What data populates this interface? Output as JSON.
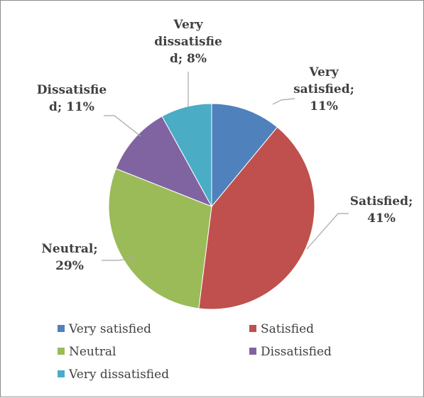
{
  "chart_data": {
    "type": "pie",
    "title": "",
    "series": [
      {
        "values": [
          11,
          41,
          29,
          11,
          8
        ],
        "categories": [
          "Very satisfied",
          "Satisfied",
          "Neutral",
          "Dissatisfied",
          "Very dissatisfied"
        ]
      }
    ],
    "slices": [
      {
        "label": "Very satisfied",
        "value": 11,
        "data_label": [
          "Very",
          "satisfied;",
          "11%"
        ],
        "color": "#4f81bd"
      },
      {
        "label": "Satisfied",
        "value": 41,
        "data_label": [
          "Satisfied;",
          "41%"
        ],
        "color": "#c0504d"
      },
      {
        "label": "Neutral",
        "value": 29,
        "data_label": [
          "Neutral;",
          "29%"
        ],
        "color": "#9bbb59"
      },
      {
        "label": "Dissatisfied",
        "value": 11,
        "data_label": [
          "Dissatisfie",
          "d; 11%"
        ],
        "color": "#8064a2"
      },
      {
        "label": "Very dissatisfied",
        "value": 8,
        "data_label": [
          "Very",
          "dissatisfie",
          "d; 8%"
        ],
        "color": "#4bacc6"
      }
    ],
    "legend": {
      "placement": "bottom",
      "entries": [
        "Very satisfied",
        "Satisfied",
        "Neutral",
        "Dissatisfied",
        "Very dissatisfied"
      ]
    },
    "start_angle_deg": 0,
    "direction": "clockwise"
  }
}
